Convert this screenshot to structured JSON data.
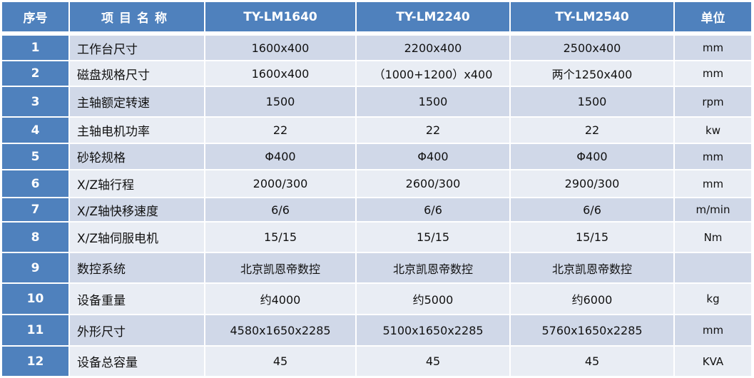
{
  "colors": {
    "header": "#4f81bd",
    "row_odd": "#d0d8e8",
    "row_even": "#e9edf4"
  },
  "headers": [
    "序号",
    "项目名称",
    "TY-LM1640",
    "TY-LM2240",
    "TY-LM2540",
    "单位"
  ],
  "rows": [
    [
      "1",
      "工作台尺寸",
      "1600x400",
      "2200x400",
      "2500x400",
      "mm"
    ],
    [
      "2",
      "磁盘规格尺寸",
      "1600x400",
      "（1000+1200）x400",
      "两个1250x400",
      "mm"
    ],
    [
      "3",
      "主轴额定转速",
      "1500",
      "1500",
      "1500",
      "rpm"
    ],
    [
      "4",
      "主轴电机功率",
      "22",
      "22",
      "22",
      "kw"
    ],
    [
      "5",
      "砂轮规格",
      "Φ400",
      "Φ400",
      "Φ400",
      "mm"
    ],
    [
      "6",
      "X/Z轴行程",
      "2000/300",
      "2600/300",
      "2900/300",
      "mm"
    ],
    [
      "7",
      "X/Z轴快移速度",
      "6/6",
      "6/6",
      "6/6",
      "m/min"
    ],
    [
      "8",
      "X/Z轴伺服电机",
      "15/15",
      "15/15",
      "15/15",
      "Nm"
    ],
    [
      "9",
      "数控系统",
      "北京凯恩帝数控",
      "北京凯恩帝数控",
      "北京凯恩帝数控",
      ""
    ],
    [
      "10",
      "设备重量",
      "约4000",
      "约5000",
      "约6000",
      "kg"
    ],
    [
      "11",
      "外形尺寸",
      "4580x1650x2285",
      "5100x1650x2285",
      "5760x1650x2285",
      "mm"
    ],
    [
      "12",
      "设备总容量",
      "45",
      "45",
      "45",
      "KVA"
    ]
  ]
}
